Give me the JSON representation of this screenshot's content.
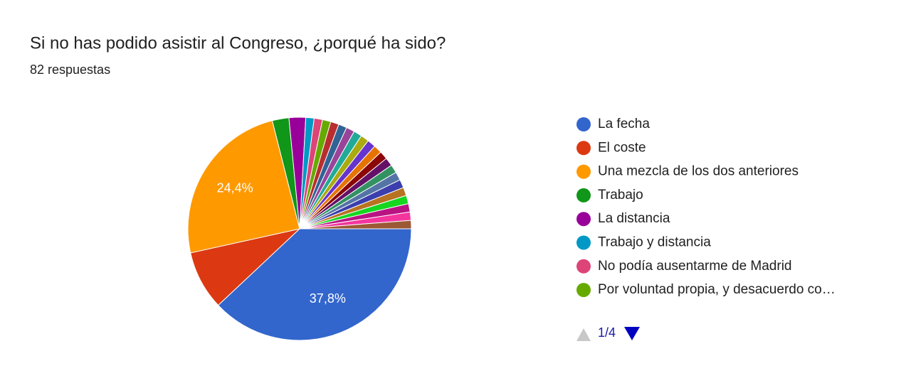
{
  "chart_data": {
    "type": "pie",
    "title": "Si no has podido asistir al Congreso, ¿porqué ha sido?",
    "subtitle": "82 respuestas",
    "categories": [
      "La fecha",
      "El coste",
      "Una mezcla de los dos anteriores",
      "Trabajo",
      "La distancia",
      "Trabajo y distancia",
      "No podía ausentarme de Madrid",
      "Por voluntad propia, y desacuerdo co…",
      null,
      null,
      null,
      null,
      null,
      null,
      null,
      null,
      null,
      null,
      null,
      null,
      null,
      null,
      null,
      null,
      null
    ],
    "values": [
      37.8,
      8.5,
      24.4,
      2.4,
      2.4,
      1.2,
      1.2,
      1.2,
      1.2,
      1.2,
      1.2,
      1.2,
      1.2,
      1.2,
      1.2,
      1.2,
      1.2,
      1.2,
      1.2,
      1.2,
      1.2,
      1.2,
      1.2,
      1.2,
      1.2
    ],
    "value_labels": [
      "37,8%",
      null,
      "24,4%",
      null,
      null,
      null,
      null,
      null,
      null,
      null,
      null,
      null,
      null,
      null,
      null,
      null,
      null,
      null,
      null,
      null,
      null,
      null,
      null,
      null,
      null
    ],
    "colors": [
      "#3366cc",
      "#dc3912",
      "#ff9900",
      "#109618",
      "#990099",
      "#0099c6",
      "#dd4477",
      "#66aa00",
      "#b82e2e",
      "#316395",
      "#994499",
      "#22aa99",
      "#aaaa11",
      "#6633cc",
      "#e67300",
      "#8b0707",
      "#651067",
      "#329262",
      "#5574a6",
      "#3b3eac",
      "#b77322",
      "#16d620",
      "#b91383",
      "#f4359e",
      "#9c5935"
    ],
    "legend_page": "1/4"
  }
}
